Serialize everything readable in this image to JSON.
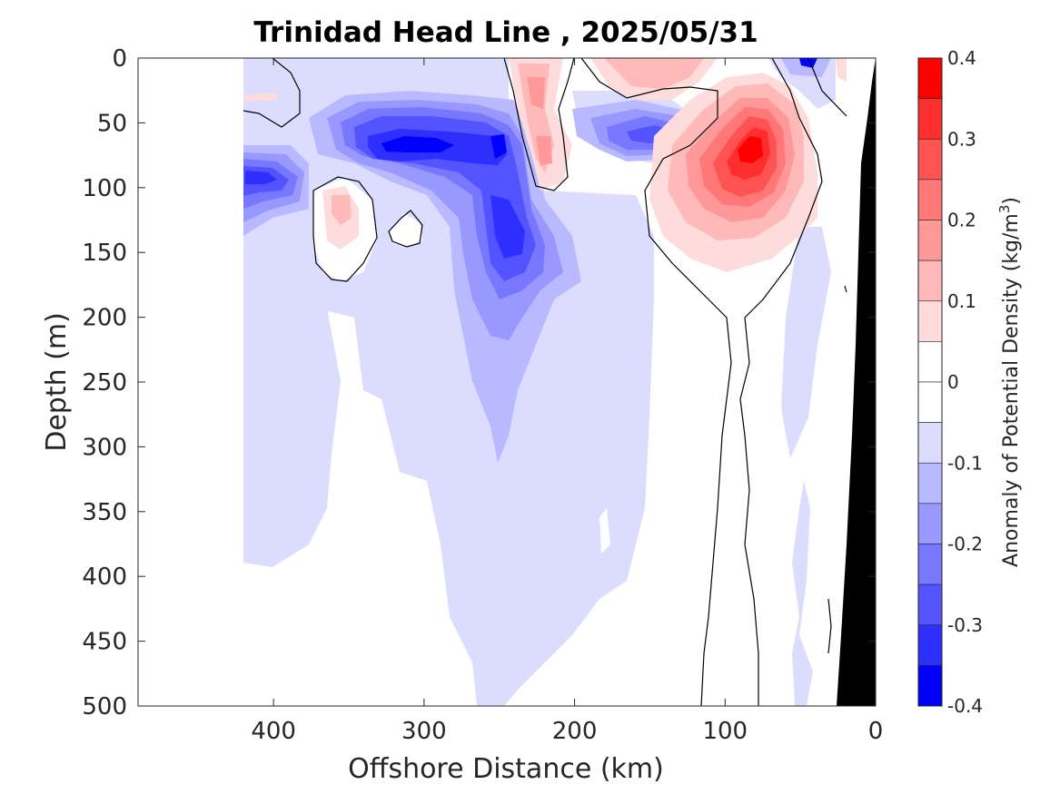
{
  "chart_data": {
    "type": "contour",
    "title": "Trinidad Head Line , 2025/05/31",
    "xlabel": "Offshore Distance (km)",
    "ylabel": "Depth (m)",
    "colorbar_label": "Anomaly of Potential Density (kg/m",
    "colorbar_label_superscript": "3",
    "colorbar_label_suffix": ")",
    "x_range": [
      490,
      0
    ],
    "x_reversed": true,
    "y_range": [
      0,
      500
    ],
    "y_reversed": true,
    "x_ticks": [
      400,
      300,
      200,
      100,
      0
    ],
    "x_tick_labels": [
      "400",
      "300",
      "200",
      "100",
      "0"
    ],
    "y_ticks": [
      0,
      50,
      100,
      150,
      200,
      250,
      300,
      350,
      400,
      450,
      500
    ],
    "y_tick_labels": [
      "0",
      "50",
      "100",
      "150",
      "200",
      "250",
      "300",
      "350",
      "400",
      "450",
      "500"
    ],
    "colorbar_range": [
      -0.4,
      0.4
    ],
    "colorbar_ticks": [
      0.4,
      0.3,
      0.2,
      0.1,
      0,
      -0.1,
      -0.2,
      -0.3,
      -0.4
    ],
    "colorbar_tick_labels": [
      "0.4",
      "0.3",
      "0.2",
      "0.1",
      "0",
      "-0.1",
      "-0.2",
      "-0.3",
      "-0.4"
    ],
    "colorbar_levels": [
      {
        "range": [
          0.35,
          0.4
        ],
        "color": "#ff0000"
      },
      {
        "range": [
          0.3,
          0.35
        ],
        "color": "#ff2e2e"
      },
      {
        "range": [
          0.25,
          0.3
        ],
        "color": "#ff5353"
      },
      {
        "range": [
          0.2,
          0.25
        ],
        "color": "#ff7777"
      },
      {
        "range": [
          0.15,
          0.2
        ],
        "color": "#ff9898"
      },
      {
        "range": [
          0.1,
          0.15
        ],
        "color": "#ffb9b9"
      },
      {
        "range": [
          0.05,
          0.1
        ],
        "color": "#ffdcdc"
      },
      {
        "range": [
          0,
          0.05
        ],
        "color": "#ffffff"
      },
      {
        "range": [
          -0.05,
          0
        ],
        "color": "#ffffff"
      },
      {
        "range": [
          -0.1,
          -0.05
        ],
        "color": "#dcdcff"
      },
      {
        "range": [
          -0.15,
          -0.1
        ],
        "color": "#b9b9ff"
      },
      {
        "range": [
          -0.2,
          -0.15
        ],
        "color": "#9898ff"
      },
      {
        "range": [
          -0.25,
          -0.2
        ],
        "color": "#7777ff"
      },
      {
        "range": [
          -0.3,
          -0.25
        ],
        "color": "#5353ff"
      },
      {
        "range": [
          -0.35,
          -0.3
        ],
        "color": "#2e2eff"
      },
      {
        "range": [
          -0.4,
          -0.35
        ],
        "color": "#0000ff"
      }
    ],
    "grid": false,
    "bathymetry_color": "#000000",
    "zero_contour_color": "#000000"
  }
}
